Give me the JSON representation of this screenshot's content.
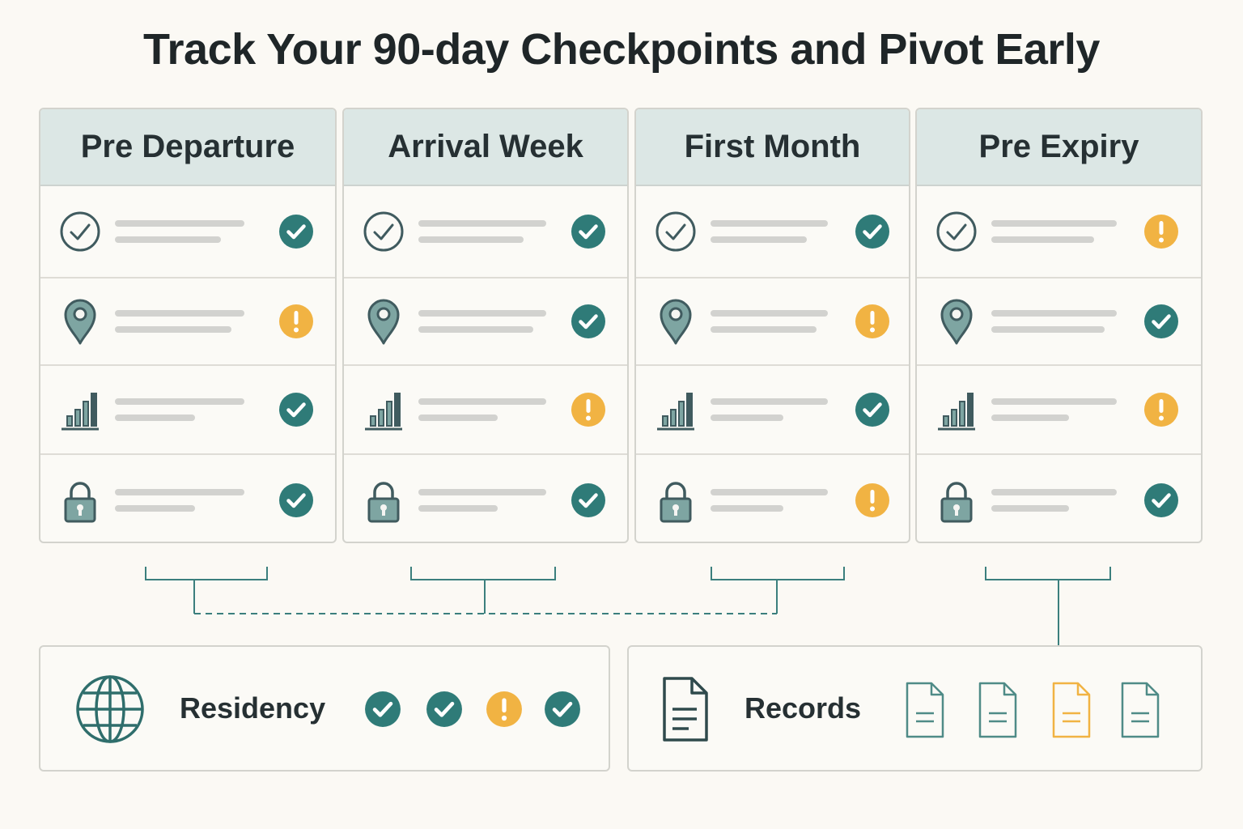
{
  "title": "Track Your 90-day Checkpoints and Pivot Early",
  "colors": {
    "ok": "#2f7b78",
    "warn": "#f1b343",
    "header": "#dce7e5",
    "icon": "#405b5f",
    "icon_fill": "#7ea5a2",
    "placeholder": "#d2d2cf"
  },
  "checkpoint_icons": [
    "check-circle-icon",
    "location-pin-icon",
    "bar-chart-icon",
    "padlock-icon"
  ],
  "phases": [
    {
      "label": "Pre Departure",
      "statuses": [
        "ok",
        "warn",
        "ok",
        "ok"
      ]
    },
    {
      "label": "Arrival Week",
      "statuses": [
        "ok",
        "ok",
        "warn",
        "ok"
      ]
    },
    {
      "label": "First Month",
      "statuses": [
        "ok",
        "warn",
        "ok",
        "warn"
      ]
    },
    {
      "label": "Pre Expiry",
      "statuses": [
        "warn",
        "ok",
        "warn",
        "ok"
      ]
    }
  ],
  "residency": {
    "label": "Residency",
    "icon": "globe-icon",
    "statuses": [
      "ok",
      "ok",
      "warn",
      "ok"
    ]
  },
  "records": {
    "label": "Records",
    "icon": "document-icon",
    "documents": [
      "neutral",
      "neutral",
      "warn",
      "neutral"
    ]
  }
}
